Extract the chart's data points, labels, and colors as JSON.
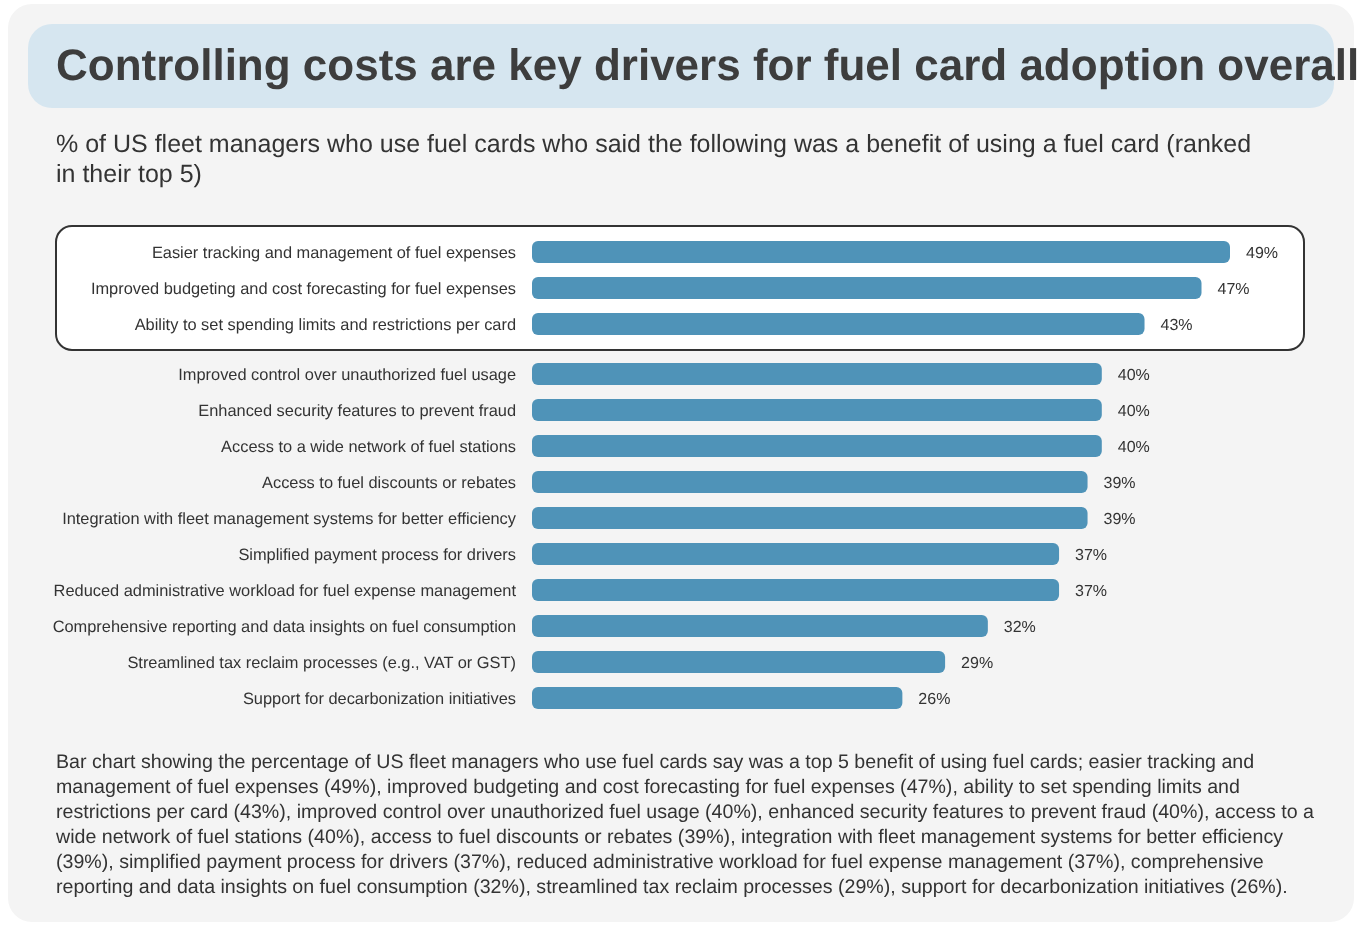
{
  "chart_data": {
    "type": "bar",
    "orientation": "horizontal",
    "title": "Controlling costs are key drivers for fuel card adoption overall",
    "subtitle": "% of US fleet managers who use fuel cards who said the following was a benefit of using a fuel card (ranked in their top 5)",
    "categories": [
      "Easier tracking and management of fuel expenses",
      "Improved budgeting and cost forecasting for fuel expenses",
      "Ability to set spending limits and restrictions per card",
      "Improved control over unauthorized fuel usage",
      "Enhanced security features to prevent fraud",
      "Access to a wide network of fuel stations",
      "Access to fuel discounts or rebates",
      "Integration with fleet management systems for better efficiency",
      "Simplified payment process for drivers",
      "Reduced administrative workload for fuel expense management",
      "Comprehensive reporting and data insights on fuel consumption",
      "Streamlined tax reclaim processes (e.g., VAT or GST)",
      "Support for decarbonization initiatives"
    ],
    "values": [
      49,
      47,
      43,
      40,
      40,
      40,
      39,
      39,
      37,
      37,
      32,
      29,
      26
    ],
    "value_labels": [
      "49%",
      "47%",
      "43%",
      "40%",
      "40%",
      "40%",
      "39%",
      "39%",
      "37%",
      "37%",
      "32%",
      "29%",
      "26%"
    ],
    "color": "#4f93b8",
    "annotations": [
      "Bar chart showing the percentage of US fleet managers who use fuel cards say was a top 5 benefit of using fuel cards; easier tracking and management of fuel expenses (49%), improved budgeting and cost forecasting for fuel expenses (47%), ability to set spending limits and restrictions per card (43%), improved control over unauthorized fuel usage (40%), enhanced security features to prevent fraud (40%), access to a wide network of fuel stations (40%), access to fuel discounts or rebates (39%), integration with fleet management systems for better efficiency (39%), simplified payment process for drivers (37%), reduced administrative workload for fuel expense management (37%), comprehensive reporting and data insights on fuel consumption (32%), streamlined tax reclaim processes (29%), support for decarbonization initiatives (26%)."
    ],
    "stacked": false
  }
}
